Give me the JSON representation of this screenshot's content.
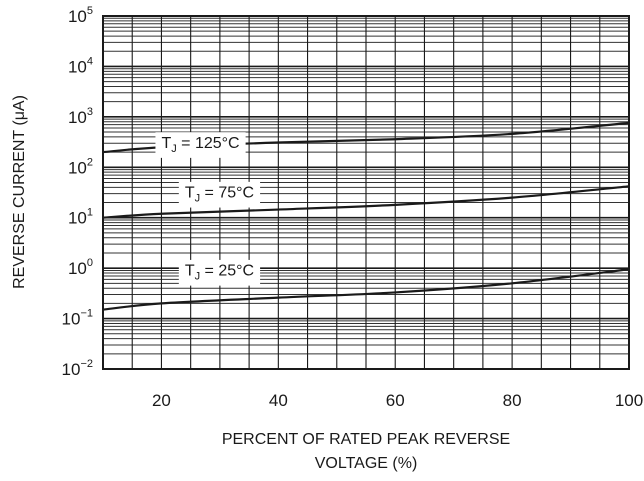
{
  "chart_data": {
    "type": "line",
    "title": "",
    "xlabel_lines": [
      "PERCENT OF RATED PEAK REVERSE",
      "VOLTAGE (%)"
    ],
    "ylabel": "REVERSE CURRENT (μA)",
    "xlim": [
      10,
      100
    ],
    "ylim": [
      0.01,
      100000
    ],
    "yscale": "log",
    "grid": true,
    "x_ticks": [
      {
        "value": 20,
        "label": "20"
      },
      {
        "value": 40,
        "label": "40"
      },
      {
        "value": 60,
        "label": "60"
      },
      {
        "value": 80,
        "label": "80"
      },
      {
        "value": 100,
        "label": "100"
      }
    ],
    "y_ticks": [
      {
        "value": 100000,
        "base": "10",
        "exp": "5"
      },
      {
        "value": 10000,
        "base": "10",
        "exp": "4"
      },
      {
        "value": 1000,
        "base": "10",
        "exp": "3"
      },
      {
        "value": 100,
        "base": "10",
        "exp": "2"
      },
      {
        "value": 10,
        "base": "10",
        "exp": "1"
      },
      {
        "value": 1,
        "base": "10",
        "exp": "0"
      },
      {
        "value": 0.1,
        "base": "10",
        "exp": "−1"
      },
      {
        "value": 0.01,
        "base": "10",
        "exp": "−2"
      }
    ],
    "series": [
      {
        "label_text": "T",
        "label_sub": "J",
        "label_rest": " = 125°C",
        "label_at": [
          20,
          290
        ],
        "x": [
          10,
          20,
          40,
          60,
          80,
          100
        ],
        "values": [
          200,
          250,
          310,
          360,
          460,
          760
        ]
      },
      {
        "label_text": "T",
        "label_sub": "J",
        "label_rest": " = 75°C",
        "label_at": [
          24,
          30
        ],
        "x": [
          10,
          20,
          40,
          60,
          80,
          100
        ],
        "values": [
          10,
          12,
          14.5,
          18,
          25,
          42
        ]
      },
      {
        "label_text": "T",
        "label_sub": "J",
        "label_rest": " = 25°C",
        "label_at": [
          24,
          0.85
        ],
        "x": [
          10,
          20,
          40,
          60,
          80,
          100
        ],
        "values": [
          0.15,
          0.2,
          0.26,
          0.33,
          0.5,
          0.95
        ]
      }
    ]
  }
}
